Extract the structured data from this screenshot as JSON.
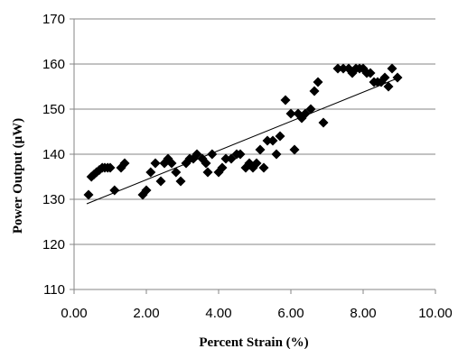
{
  "chart_data": {
    "type": "scatter",
    "title": "",
    "xlabel": "Percent Strain (%)",
    "ylabel": "Power Output  (μW)",
    "xlim": [
      0,
      10
    ],
    "ylim": [
      110,
      170
    ],
    "x_ticks": [
      "0.00",
      "2.00",
      "4.00",
      "6.00",
      "8.00",
      "10.00"
    ],
    "y_ticks": [
      "110",
      "120",
      "130",
      "140",
      "150",
      "160",
      "170"
    ],
    "grid": "horizontal",
    "marker": "diamond",
    "marker_color": "#000000",
    "trendline": {
      "type": "linear",
      "x": [
        0.35,
        9.0
      ],
      "y": [
        129,
        157
      ]
    },
    "points": [
      {
        "x": 0.4,
        "y": 131
      },
      {
        "x": 0.48,
        "y": 135
      },
      {
        "x": 0.55,
        "y": 135.5
      },
      {
        "x": 0.62,
        "y": 136
      },
      {
        "x": 0.7,
        "y": 136.5
      },
      {
        "x": 0.78,
        "y": 137
      },
      {
        "x": 0.85,
        "y": 137
      },
      {
        "x": 0.93,
        "y": 137
      },
      {
        "x": 1.0,
        "y": 137
      },
      {
        "x": 1.12,
        "y": 132
      },
      {
        "x": 1.3,
        "y": 137
      },
      {
        "x": 1.4,
        "y": 138
      },
      {
        "x": 1.9,
        "y": 131
      },
      {
        "x": 2.0,
        "y": 132
      },
      {
        "x": 2.12,
        "y": 136
      },
      {
        "x": 2.25,
        "y": 138
      },
      {
        "x": 2.4,
        "y": 134
      },
      {
        "x": 2.5,
        "y": 138
      },
      {
        "x": 2.6,
        "y": 139
      },
      {
        "x": 2.7,
        "y": 138
      },
      {
        "x": 2.82,
        "y": 136
      },
      {
        "x": 2.95,
        "y": 134
      },
      {
        "x": 3.1,
        "y": 138
      },
      {
        "x": 3.2,
        "y": 139
      },
      {
        "x": 3.3,
        "y": 139
      },
      {
        "x": 3.4,
        "y": 140
      },
      {
        "x": 3.55,
        "y": 139
      },
      {
        "x": 3.65,
        "y": 138
      },
      {
        "x": 3.7,
        "y": 136
      },
      {
        "x": 3.82,
        "y": 140
      },
      {
        "x": 4.0,
        "y": 136
      },
      {
        "x": 4.1,
        "y": 137
      },
      {
        "x": 4.2,
        "y": 139
      },
      {
        "x": 4.35,
        "y": 139
      },
      {
        "x": 4.5,
        "y": 140
      },
      {
        "x": 4.6,
        "y": 140
      },
      {
        "x": 4.75,
        "y": 137
      },
      {
        "x": 4.85,
        "y": 138
      },
      {
        "x": 4.95,
        "y": 137
      },
      {
        "x": 5.05,
        "y": 138
      },
      {
        "x": 5.15,
        "y": 141
      },
      {
        "x": 5.25,
        "y": 137
      },
      {
        "x": 5.35,
        "y": 143
      },
      {
        "x": 5.5,
        "y": 143
      },
      {
        "x": 5.6,
        "y": 140
      },
      {
        "x": 5.7,
        "y": 144
      },
      {
        "x": 5.85,
        "y": 152
      },
      {
        "x": 6.0,
        "y": 149
      },
      {
        "x": 6.1,
        "y": 141
      },
      {
        "x": 6.2,
        "y": 149
      },
      {
        "x": 6.3,
        "y": 148
      },
      {
        "x": 6.4,
        "y": 149
      },
      {
        "x": 6.55,
        "y": 150
      },
      {
        "x": 6.65,
        "y": 154
      },
      {
        "x": 6.75,
        "y": 156
      },
      {
        "x": 6.9,
        "y": 147
      },
      {
        "x": 7.3,
        "y": 159
      },
      {
        "x": 7.45,
        "y": 159
      },
      {
        "x": 7.6,
        "y": 159
      },
      {
        "x": 7.7,
        "y": 158
      },
      {
        "x": 7.8,
        "y": 159
      },
      {
        "x": 7.9,
        "y": 159
      },
      {
        "x": 8.0,
        "y": 159
      },
      {
        "x": 8.1,
        "y": 158
      },
      {
        "x": 8.2,
        "y": 158
      },
      {
        "x": 8.3,
        "y": 156
      },
      {
        "x": 8.4,
        "y": 156
      },
      {
        "x": 8.5,
        "y": 156
      },
      {
        "x": 8.6,
        "y": 157
      },
      {
        "x": 8.7,
        "y": 155
      },
      {
        "x": 8.8,
        "y": 159
      },
      {
        "x": 8.95,
        "y": 157
      }
    ]
  }
}
